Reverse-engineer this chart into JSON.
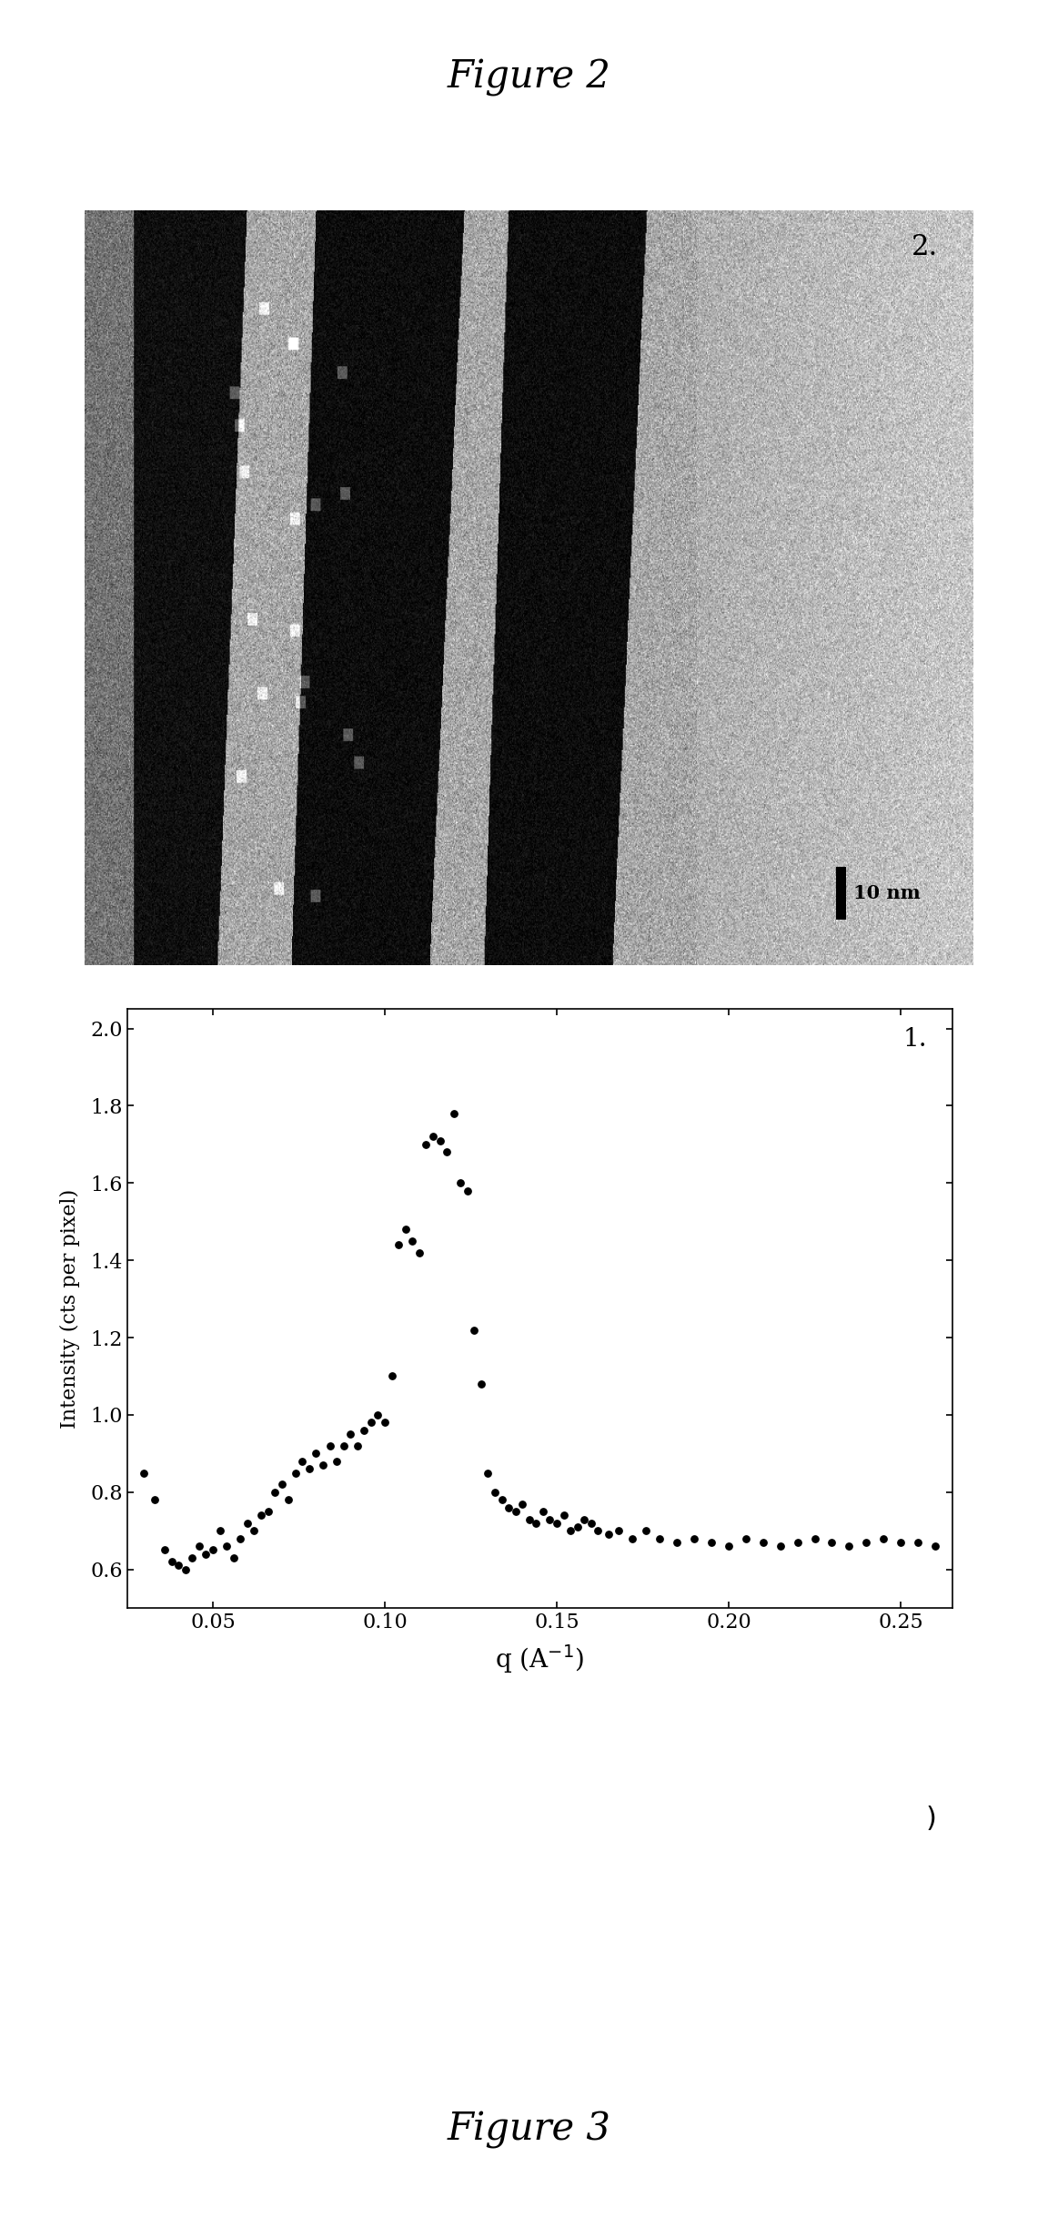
{
  "title_top": "Figure 2",
  "title_bottom": "Figure 3",
  "label_2": "2.",
  "label_1": "1.",
  "scalebar_text": "10 nm",
  "xlabel": "q (A⁻¹)",
  "ylabel": "Intensity (cts per pixel)",
  "xlim": [
    0.025,
    0.265
  ],
  "ylim": [
    0.5,
    2.05
  ],
  "xticks": [
    0.05,
    0.1,
    0.15,
    0.2,
    0.25
  ],
  "yticks": [
    0.6,
    0.8,
    1.0,
    1.2,
    1.4,
    1.6,
    1.8,
    2.0
  ],
  "xtick_labels": [
    "0.05",
    "0.10",
    "0.15",
    "0.20",
    "0.25"
  ],
  "ytick_labels": [
    "0.6",
    "0.8",
    "1.0",
    "1.2",
    "1.4",
    "1.6",
    "1.8",
    "2.0"
  ],
  "scatter_x": [
    0.03,
    0.033,
    0.036,
    0.038,
    0.04,
    0.042,
    0.044,
    0.046,
    0.048,
    0.05,
    0.052,
    0.054,
    0.056,
    0.058,
    0.06,
    0.062,
    0.064,
    0.066,
    0.068,
    0.07,
    0.072,
    0.074,
    0.076,
    0.078,
    0.08,
    0.082,
    0.084,
    0.086,
    0.088,
    0.09,
    0.092,
    0.094,
    0.096,
    0.098,
    0.1,
    0.102,
    0.104,
    0.106,
    0.108,
    0.11,
    0.112,
    0.114,
    0.116,
    0.118,
    0.12,
    0.122,
    0.124,
    0.126,
    0.128,
    0.13,
    0.132,
    0.134,
    0.136,
    0.138,
    0.14,
    0.142,
    0.144,
    0.146,
    0.148,
    0.15,
    0.152,
    0.154,
    0.156,
    0.158,
    0.16,
    0.162,
    0.165,
    0.168,
    0.172,
    0.176,
    0.18,
    0.185,
    0.19,
    0.195,
    0.2,
    0.205,
    0.21,
    0.215,
    0.22,
    0.225,
    0.23,
    0.235,
    0.24,
    0.245,
    0.25,
    0.255,
    0.26
  ],
  "scatter_y": [
    0.85,
    0.78,
    0.65,
    0.62,
    0.61,
    0.6,
    0.63,
    0.66,
    0.64,
    0.65,
    0.7,
    0.66,
    0.63,
    0.68,
    0.72,
    0.7,
    0.74,
    0.75,
    0.8,
    0.82,
    0.78,
    0.85,
    0.88,
    0.86,
    0.9,
    0.87,
    0.92,
    0.88,
    0.92,
    0.95,
    0.92,
    0.96,
    0.98,
    1.0,
    0.98,
    1.1,
    1.44,
    1.48,
    1.45,
    1.42,
    1.7,
    1.72,
    1.71,
    1.68,
    1.78,
    1.6,
    1.58,
    1.22,
    1.08,
    0.85,
    0.8,
    0.78,
    0.76,
    0.75,
    0.77,
    0.73,
    0.72,
    0.75,
    0.73,
    0.72,
    0.74,
    0.7,
    0.71,
    0.73,
    0.72,
    0.7,
    0.69,
    0.7,
    0.68,
    0.7,
    0.68,
    0.67,
    0.68,
    0.67,
    0.66,
    0.68,
    0.67,
    0.66,
    0.67,
    0.68,
    0.67,
    0.66,
    0.67,
    0.68,
    0.67,
    0.67,
    0.66
  ],
  "dot_color": "#000000",
  "dot_size": 28,
  "background_color": "#ffffff",
  "figure_bg": "#ffffff"
}
